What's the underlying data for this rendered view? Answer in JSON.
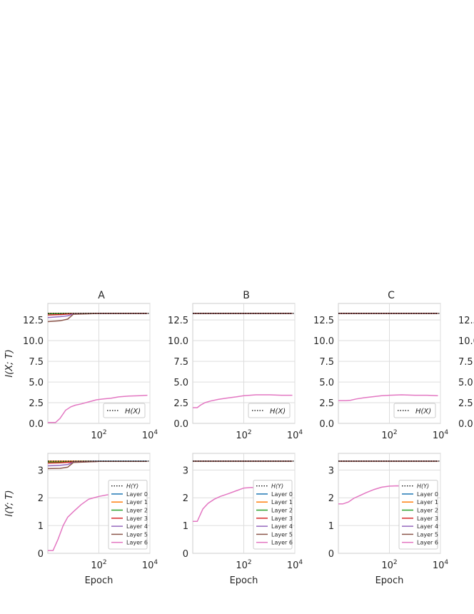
{
  "figure": {
    "titles": [
      "A",
      "B",
      "C"
    ],
    "top_ylabel": "I(X; T)",
    "bottom_ylabel": "I(Y; T)",
    "xlabel": "Epoch",
    "top_legend": [
      "H(X)"
    ],
    "bottom_legend": [
      "H(Y)",
      "Layer 0",
      "Layer 1",
      "Layer 2",
      "Layer 3",
      "Layer 4",
      "Layer 5",
      "Layer 6"
    ],
    "colors": {
      "Layer 0": "#1f77b4",
      "Layer 1": "#ff7f0e",
      "Layer 2": "#2ca02c",
      "Layer 3": "#d62728",
      "Layer 4": "#9467bd",
      "Layer 5": "#8c564b",
      "Layer 6": "#e377c2",
      "H": "#000000"
    }
  },
  "chart_data": [
    {
      "panel": "A",
      "type": "line",
      "title": "A",
      "ylabel": "I(X; T)",
      "xlabel": "",
      "xscale": "log",
      "xlim": [
        1,
        10000
      ],
      "ylim": [
        0,
        14.5
      ],
      "yticks": [
        "0.0",
        "2.5",
        "5.0",
        "7.5",
        "10.0",
        "12.5"
      ],
      "xticks": [
        "10^2",
        "10^4"
      ],
      "legend": "bottom-right",
      "grid": true,
      "reference": {
        "name": "H(X)",
        "y": 13.29
      },
      "series": [
        {
          "name": "Layer 0",
          "x": [
            1,
            3,
            10,
            100,
            1000,
            8000
          ],
          "y": [
            13.29,
            13.29,
            13.29,
            13.29,
            13.29,
            13.29
          ]
        },
        {
          "name": "Layer 1",
          "x": [
            1,
            3,
            10,
            100,
            1000,
            8000
          ],
          "y": [
            13.29,
            13.29,
            13.29,
            13.29,
            13.29,
            13.29
          ]
        },
        {
          "name": "Layer 2",
          "x": [
            1,
            3,
            10,
            100,
            1000,
            8000
          ],
          "y": [
            13.25,
            13.26,
            13.28,
            13.29,
            13.29,
            13.29
          ]
        },
        {
          "name": "Layer 3",
          "x": [
            1,
            3,
            10,
            100,
            1000,
            8000
          ],
          "y": [
            13.1,
            13.15,
            13.27,
            13.29,
            13.29,
            13.29
          ]
        },
        {
          "name": "Layer 4",
          "x": [
            1,
            3,
            6,
            10,
            100,
            8000
          ],
          "y": [
            12.8,
            12.9,
            13.0,
            13.25,
            13.29,
            13.29
          ]
        },
        {
          "name": "Layer 5",
          "x": [
            1,
            3,
            6,
            10,
            100,
            8000
          ],
          "y": [
            12.3,
            12.4,
            12.6,
            13.2,
            13.29,
            13.29
          ]
        },
        {
          "name": "Layer 6",
          "x": [
            1,
            2,
            3,
            5,
            8,
            12,
            20,
            40,
            80,
            150,
            300,
            600,
            1500,
            4000,
            8000
          ],
          "y": [
            0.1,
            0.1,
            0.6,
            1.6,
            2.0,
            2.2,
            2.35,
            2.6,
            2.85,
            2.95,
            3.05,
            3.2,
            3.3,
            3.35,
            3.4
          ]
        }
      ]
    },
    {
      "panel": "B",
      "type": "line",
      "title": "B",
      "ylabel": "",
      "xlabel": "",
      "xscale": "log",
      "xlim": [
        1,
        10000
      ],
      "ylim": [
        0,
        14.5
      ],
      "yticks": [
        "0.0",
        "2.5",
        "5.0",
        "7.5",
        "10.0",
        "12.5"
      ],
      "xticks": [
        "10^2",
        "10^4"
      ],
      "legend": "bottom-right",
      "grid": true,
      "reference": {
        "name": "H(X)",
        "y": 13.29
      },
      "series": [
        {
          "name": "Layer 0",
          "x": [
            1,
            10,
            100,
            1000,
            8000
          ],
          "y": [
            13.29,
            13.29,
            13.29,
            13.29,
            13.29
          ]
        },
        {
          "name": "Layer 1",
          "x": [
            1,
            10,
            100,
            1000,
            8000
          ],
          "y": [
            13.29,
            13.29,
            13.29,
            13.29,
            13.29
          ]
        },
        {
          "name": "Layer 2",
          "x": [
            1,
            10,
            100,
            1000,
            8000
          ],
          "y": [
            13.29,
            13.29,
            13.29,
            13.29,
            13.29
          ]
        },
        {
          "name": "Layer 3",
          "x": [
            1,
            10,
            100,
            1000,
            8000
          ],
          "y": [
            13.29,
            13.29,
            13.29,
            13.29,
            13.29
          ]
        },
        {
          "name": "Layer 4",
          "x": [
            1,
            10,
            100,
            1000,
            8000
          ],
          "y": [
            13.29,
            13.29,
            13.29,
            13.29,
            13.29
          ]
        },
        {
          "name": "Layer 5",
          "x": [
            1,
            10,
            100,
            1000,
            8000
          ],
          "y": [
            13.29,
            13.29,
            13.29,
            13.29,
            13.29
          ]
        },
        {
          "name": "Layer 6",
          "x": [
            1,
            1.5,
            2,
            3,
            5,
            10,
            20,
            50,
            100,
            300,
            1000,
            3000,
            8000
          ],
          "y": [
            1.9,
            1.9,
            2.2,
            2.5,
            2.7,
            2.9,
            3.05,
            3.2,
            3.35,
            3.45,
            3.45,
            3.4,
            3.4
          ]
        }
      ]
    },
    {
      "panel": "C",
      "type": "line",
      "title": "C",
      "ylabel": "",
      "xlabel": "",
      "xscale": "log",
      "xlim": [
        1,
        10000
      ],
      "ylim": [
        0,
        14.5
      ],
      "yticks": [
        "0.0",
        "2.5",
        "5.0",
        "7.5",
        "10.0",
        "12.5"
      ],
      "xticks": [
        "10^2",
        "10^4"
      ],
      "legend": "bottom-right",
      "grid": true,
      "reference": {
        "name": "H(X)",
        "y": 13.29
      },
      "series": [
        {
          "name": "Layer 0",
          "x": [
            1,
            10,
            100,
            1000,
            8000
          ],
          "y": [
            13.29,
            13.29,
            13.29,
            13.29,
            13.29
          ]
        },
        {
          "name": "Layer 1",
          "x": [
            1,
            10,
            100,
            1000,
            8000
          ],
          "y": [
            13.29,
            13.29,
            13.29,
            13.29,
            13.29
          ]
        },
        {
          "name": "Layer 2",
          "x": [
            1,
            10,
            100,
            1000,
            8000
          ],
          "y": [
            13.29,
            13.29,
            13.29,
            13.29,
            13.29
          ]
        },
        {
          "name": "Layer 3",
          "x": [
            1,
            10,
            100,
            1000,
            8000
          ],
          "y": [
            13.29,
            13.29,
            13.29,
            13.29,
            13.29
          ]
        },
        {
          "name": "Layer 4",
          "x": [
            1,
            10,
            100,
            1000,
            8000
          ],
          "y": [
            13.29,
            13.29,
            13.29,
            13.29,
            13.29
          ]
        },
        {
          "name": "Layer 5",
          "x": [
            1,
            10,
            100,
            1000,
            8000
          ],
          "y": [
            13.29,
            13.29,
            13.29,
            13.29,
            13.29
          ]
        },
        {
          "name": "Layer 6",
          "x": [
            1,
            2,
            3,
            5,
            10,
            20,
            50,
            100,
            300,
            1000,
            3000,
            8000
          ],
          "y": [
            2.75,
            2.75,
            2.8,
            2.95,
            3.1,
            3.2,
            3.35,
            3.4,
            3.45,
            3.4,
            3.4,
            3.35
          ]
        }
      ]
    },
    {
      "panel": "A",
      "type": "line",
      "title": "",
      "ylabel": "I(Y; T)",
      "xlabel": "Epoch",
      "xscale": "log",
      "xlim": [
        1,
        10000
      ],
      "ylim": [
        0,
        3.6
      ],
      "yticks": [
        "0",
        "1",
        "2",
        "3"
      ],
      "xticks": [
        "10^2",
        "10^4"
      ],
      "legend": "bottom-right",
      "grid": true,
      "reference": {
        "name": "H(Y)",
        "y": 3.32
      },
      "series": [
        {
          "name": "Layer 0",
          "x": [
            1,
            10,
            100,
            1000,
            8000
          ],
          "y": [
            3.32,
            3.32,
            3.32,
            3.32,
            3.32
          ]
        },
        {
          "name": "Layer 1",
          "x": [
            1,
            10,
            100,
            1000,
            8000
          ],
          "y": [
            3.32,
            3.32,
            3.31,
            3.31,
            3.31
          ]
        },
        {
          "name": "Layer 2",
          "x": [
            1,
            3,
            10,
            100,
            8000
          ],
          "y": [
            3.28,
            3.28,
            3.3,
            3.31,
            3.31
          ]
        },
        {
          "name": "Layer 3",
          "x": [
            1,
            3,
            10,
            100,
            8000
          ],
          "y": [
            3.25,
            3.26,
            3.29,
            3.31,
            3.31
          ]
        },
        {
          "name": "Layer 4",
          "x": [
            1,
            3,
            6,
            10,
            100,
            8000
          ],
          "y": [
            3.15,
            3.17,
            3.2,
            3.28,
            3.31,
            3.31
          ]
        },
        {
          "name": "Layer 5",
          "x": [
            1,
            3,
            6,
            10,
            100,
            8000
          ],
          "y": [
            3.05,
            3.06,
            3.1,
            3.27,
            3.31,
            3.31
          ]
        },
        {
          "name": "Layer 6",
          "x": [
            1,
            1.6,
            2.5,
            4,
            6,
            10,
            20,
            40,
            100,
            200,
            500
          ],
          "y": [
            0.1,
            0.1,
            0.5,
            1.0,
            1.3,
            1.5,
            1.75,
            1.95,
            2.05,
            2.1,
            2.15
          ]
        }
      ]
    },
    {
      "panel": "B",
      "type": "line",
      "title": "",
      "ylabel": "",
      "xlabel": "Epoch",
      "xscale": "log",
      "xlim": [
        1,
        10000
      ],
      "ylim": [
        0,
        3.6
      ],
      "yticks": [
        "0",
        "1",
        "2",
        "3"
      ],
      "xticks": [
        "10^2",
        "10^4"
      ],
      "legend": "bottom-right",
      "grid": true,
      "reference": {
        "name": "H(Y)",
        "y": 3.32
      },
      "series": [
        {
          "name": "Layer 0",
          "x": [
            1,
            10,
            100,
            1000,
            8000
          ],
          "y": [
            3.32,
            3.32,
            3.32,
            3.32,
            3.32
          ]
        },
        {
          "name": "Layer 1",
          "x": [
            1,
            10,
            100,
            1000,
            8000
          ],
          "y": [
            3.32,
            3.32,
            3.32,
            3.32,
            3.32
          ]
        },
        {
          "name": "Layer 2",
          "x": [
            1,
            10,
            100,
            1000,
            8000
          ],
          "y": [
            3.32,
            3.32,
            3.32,
            3.32,
            3.32
          ]
        },
        {
          "name": "Layer 3",
          "x": [
            1,
            10,
            100,
            1000,
            8000
          ],
          "y": [
            3.32,
            3.32,
            3.32,
            3.32,
            3.32
          ]
        },
        {
          "name": "Layer 4",
          "x": [
            1,
            10,
            100,
            1000,
            8000
          ],
          "y": [
            3.32,
            3.32,
            3.32,
            3.32,
            3.32
          ]
        },
        {
          "name": "Layer 5",
          "x": [
            1,
            10,
            100,
            1000,
            8000
          ],
          "y": [
            3.32,
            3.32,
            3.32,
            3.32,
            3.32
          ]
        },
        {
          "name": "Layer 6",
          "x": [
            1,
            1.5,
            2.5,
            4,
            7,
            12,
            25,
            50,
            100,
            200,
            400,
            800,
            1500,
            3000,
            8000
          ],
          "y": [
            1.15,
            1.15,
            1.6,
            1.8,
            1.95,
            2.05,
            2.15,
            2.25,
            2.35,
            2.37,
            2.35,
            2.32,
            2.28,
            2.26,
            2.25
          ]
        }
      ]
    },
    {
      "panel": "C",
      "type": "line",
      "title": "",
      "ylabel": "",
      "xlabel": "Epoch",
      "xscale": "log",
      "xlim": [
        1,
        10000
      ],
      "ylim": [
        0,
        3.6
      ],
      "yticks": [
        "0",
        "1",
        "2",
        "3"
      ],
      "xticks": [
        "10^2",
        "10^4"
      ],
      "legend": "bottom-right",
      "grid": true,
      "reference": {
        "name": "H(Y)",
        "y": 3.32
      },
      "series": [
        {
          "name": "Layer 0",
          "x": [
            1,
            10,
            100,
            1000,
            8000
          ],
          "y": [
            3.32,
            3.32,
            3.32,
            3.32,
            3.32
          ]
        },
        {
          "name": "Layer 1",
          "x": [
            1,
            10,
            100,
            1000,
            8000
          ],
          "y": [
            3.32,
            3.32,
            3.32,
            3.32,
            3.32
          ]
        },
        {
          "name": "Layer 2",
          "x": [
            1,
            10,
            100,
            1000,
            8000
          ],
          "y": [
            3.32,
            3.32,
            3.32,
            3.32,
            3.32
          ]
        },
        {
          "name": "Layer 3",
          "x": [
            1,
            10,
            100,
            1000,
            8000
          ],
          "y": [
            3.32,
            3.32,
            3.32,
            3.32,
            3.32
          ]
        },
        {
          "name": "Layer 4",
          "x": [
            1,
            10,
            100,
            1000,
            8000
          ],
          "y": [
            3.32,
            3.32,
            3.32,
            3.32,
            3.32
          ]
        },
        {
          "name": "Layer 5",
          "x": [
            1,
            10,
            100,
            1000,
            8000
          ],
          "y": [
            3.32,
            3.32,
            3.32,
            3.32,
            3.32
          ]
        },
        {
          "name": "Layer 6",
          "x": [
            1,
            1.5,
            2.5,
            4,
            7,
            12,
            25,
            50,
            100,
            200,
            400,
            800,
            1500,
            3000,
            8000
          ],
          "y": [
            1.78,
            1.78,
            1.85,
            1.98,
            2.08,
            2.18,
            2.3,
            2.38,
            2.42,
            2.43,
            2.42,
            2.42,
            2.41,
            2.42,
            2.41
          ]
        }
      ]
    }
  ]
}
